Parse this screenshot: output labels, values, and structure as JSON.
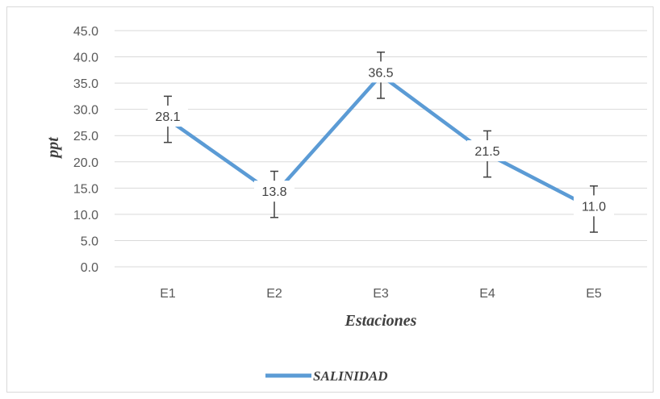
{
  "chart_data": {
    "type": "line",
    "title": "",
    "xlabel": "Estaciones",
    "ylabel": "ppt",
    "categories": [
      "E1",
      "E2",
      "E3",
      "E4",
      "E5"
    ],
    "series": [
      {
        "name": "SALINIDAD",
        "values": [
          28.1,
          13.8,
          36.5,
          21.5,
          11.0
        ],
        "value_labels": [
          "28.1",
          "13.8",
          "36.5",
          "21.5",
          "11.0"
        ],
        "error_plus_minus": [
          4.4,
          4.4,
          4.4,
          4.4,
          4.4
        ],
        "color": "#5b9bd5"
      }
    ],
    "ylim": [
      0,
      45
    ],
    "yticks": [
      "0.0",
      "5.0",
      "10.0",
      "15.0",
      "20.0",
      "25.0",
      "30.0",
      "35.0",
      "40.0",
      "45.0"
    ],
    "grid": true,
    "legend": "bottom"
  },
  "colors": {
    "series": "#5b9bd5",
    "grid": "#d9d9d9",
    "error_bar": "#404040"
  }
}
